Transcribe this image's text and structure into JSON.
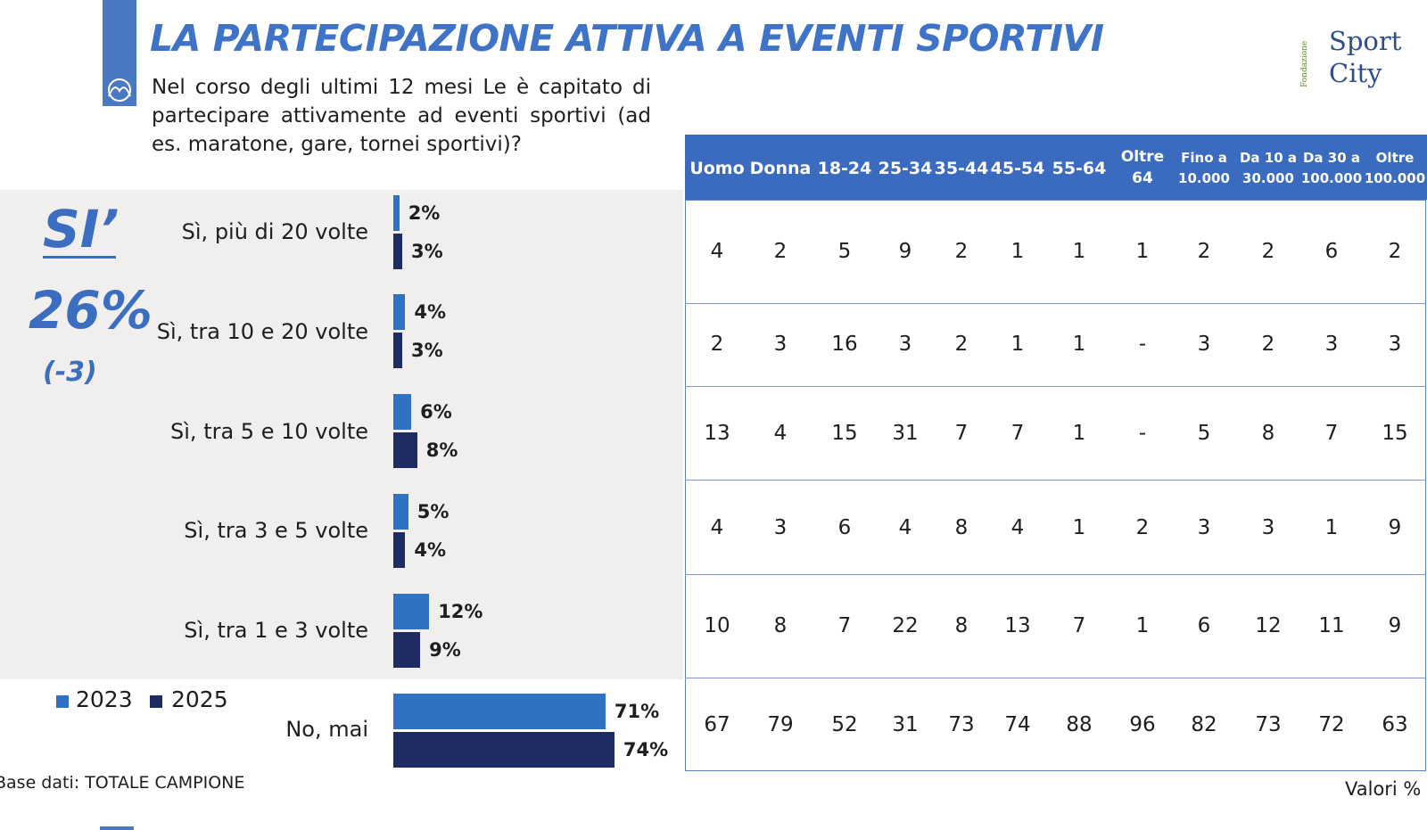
{
  "header": {
    "title": "LA PARTECIPAZIONE ATTIVA A EVENTI SPORTIVI",
    "question": "Nel corso degli ultimi 12 mesi Le è capitato di partecipare attivamente ad eventi sportivi (ad es. maratone, gare, tornei sportivi)?"
  },
  "logo": {
    "line1": "Sport",
    "line2": "City",
    "side": "Fondazione"
  },
  "summary": {
    "label": "SI’",
    "total": "26%",
    "delta": "(-3)"
  },
  "legend": [
    {
      "label": "2023",
      "color": "#2f72c1"
    },
    {
      "label": "2025",
      "color": "#1f2c64"
    }
  ],
  "footer": {
    "base": "Base dati: TOTALE CAMPIONE",
    "units": "Valori %"
  },
  "chart_data": {
    "type": "bar",
    "orientation": "horizontal",
    "categories": [
      "Sì, più di 20 volte",
      "Sì, tra 10 e 20 volte",
      "Sì, tra 5 e 10 volte",
      "Sì, tra 3 e 5 volte",
      "Sì, tra 1 e 3 volte",
      "No, mai"
    ],
    "series": [
      {
        "name": "2023",
        "values": [
          2,
          4,
          6,
          5,
          12,
          71
        ],
        "labels": [
          "2%",
          "4%",
          "6%",
          "5%",
          "12%",
          "71%"
        ],
        "color": "#2f72c1"
      },
      {
        "name": "2025",
        "values": [
          3,
          3,
          8,
          4,
          9,
          74
        ],
        "labels": [
          "3%",
          "3%",
          "8%",
          "4%",
          "9%",
          "74%"
        ],
        "color": "#1f2c64"
      }
    ],
    "xlim": [
      0,
      100
    ]
  },
  "table": {
    "columns": [
      [
        "Uomo"
      ],
      [
        "Donna"
      ],
      [
        "18-24"
      ],
      [
        "25-34"
      ],
      [
        "35-44"
      ],
      [
        "45-54"
      ],
      [
        "55-64"
      ],
      [
        "Oltre",
        "64"
      ],
      [
        "Fino a",
        "10.000"
      ],
      [
        "Da 10 a",
        "30.000"
      ],
      [
        "Da 30 a",
        "100.000"
      ],
      [
        "Oltre",
        "100.000"
      ]
    ],
    "rows": [
      [
        "4",
        "2",
        "5",
        "9",
        "2",
        "1",
        "1",
        "1",
        "2",
        "2",
        "6",
        "2"
      ],
      [
        "2",
        "3",
        "16",
        "3",
        "2",
        "1",
        "1",
        "-",
        "3",
        "2",
        "3",
        "3"
      ],
      [
        "13",
        "4",
        "15",
        "31",
        "7",
        "7",
        "1",
        "-",
        "5",
        "8",
        "7",
        "15"
      ],
      [
        "4",
        "3",
        "6",
        "4",
        "8",
        "4",
        "1",
        "2",
        "3",
        "3",
        "1",
        "9"
      ],
      [
        "10",
        "8",
        "7",
        "22",
        "8",
        "13",
        "7",
        "1",
        "6",
        "12",
        "11",
        "9"
      ],
      [
        "67",
        "79",
        "52",
        "31",
        "73",
        "74",
        "88",
        "96",
        "82",
        "73",
        "72",
        "63"
      ]
    ]
  }
}
